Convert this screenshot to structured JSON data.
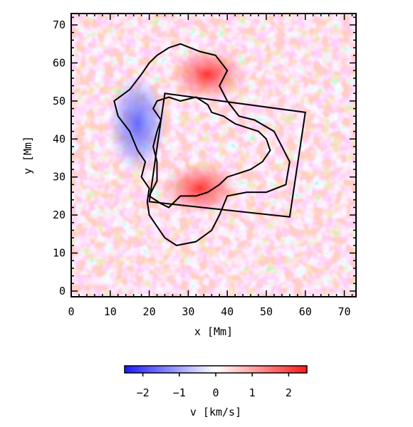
{
  "chart_data": {
    "type": "heatmap",
    "xlabel": "x [Mm]",
    "ylabel": "y [Mm]",
    "xlim": [
      0,
      73
    ],
    "ylim": [
      -1.5,
      73
    ],
    "x_ticks": [
      "0",
      "10",
      "20",
      "30",
      "40",
      "50",
      "60",
      "70"
    ],
    "y_ticks": [
      "0",
      "10",
      "20",
      "30",
      "40",
      "50",
      "60",
      "70"
    ],
    "colorbar": {
      "label": "v [km/s]",
      "range": [
        -2.5,
        2.5
      ],
      "ticks": [
        "−2",
        "−1",
        "0",
        "1",
        "2"
      ],
      "colors": [
        "#1a1aff",
        "#ffffff",
        "#ff1a1a"
      ]
    },
    "features": {
      "penumbra_outline": [
        [
          19.5,
          23.5
        ],
        [
          20,
          27
        ],
        [
          18,
          30
        ],
        [
          19,
          34
        ],
        [
          17,
          37
        ],
        [
          15,
          42
        ],
        [
          12,
          46
        ],
        [
          11,
          50
        ],
        [
          15,
          53
        ],
        [
          18,
          57
        ],
        [
          20,
          60
        ],
        [
          22,
          62
        ],
        [
          25,
          64
        ],
        [
          28,
          65
        ],
        [
          33,
          63
        ],
        [
          37,
          62
        ],
        [
          40,
          58
        ],
        [
          38,
          54
        ],
        [
          40,
          50
        ],
        [
          43,
          46
        ],
        [
          47,
          45
        ],
        [
          52,
          42
        ],
        [
          54,
          38
        ],
        [
          56,
          34
        ],
        [
          55,
          28
        ],
        [
          50,
          26
        ],
        [
          45,
          26
        ],
        [
          40,
          25
        ],
        [
          38,
          20
        ],
        [
          36,
          16
        ],
        [
          32,
          13
        ],
        [
          27,
          12
        ],
        [
          24,
          14
        ],
        [
          22,
          17
        ],
        [
          20,
          20
        ],
        [
          19.5,
          23.5
        ]
      ],
      "umbra_outline": [
        [
          20,
          25
        ],
        [
          22,
          29
        ],
        [
          22,
          34
        ],
        [
          21,
          38
        ],
        [
          22,
          42
        ],
        [
          23,
          45
        ],
        [
          21,
          48
        ],
        [
          22,
          50
        ],
        [
          25,
          51
        ],
        [
          28,
          50
        ],
        [
          32,
          51
        ],
        [
          35,
          49
        ],
        [
          36,
          47
        ],
        [
          39,
          46
        ],
        [
          42,
          44
        ],
        [
          45,
          43
        ],
        [
          48,
          42
        ],
        [
          50,
          40
        ],
        [
          51,
          37
        ],
        [
          49,
          34
        ],
        [
          46,
          32
        ],
        [
          43,
          31
        ],
        [
          40,
          30
        ],
        [
          38,
          28
        ],
        [
          35,
          26
        ],
        [
          32,
          25
        ],
        [
          28,
          25
        ],
        [
          25,
          22
        ],
        [
          23,
          23
        ],
        [
          20,
          25
        ]
      ],
      "rectangle": [
        [
          20,
          23.5
        ],
        [
          24,
          52
        ],
        [
          60,
          47
        ],
        [
          56,
          19.5
        ]
      ],
      "blue_region_center": [
        17,
        44
      ],
      "red_region_centers": [
        [
          33,
          27
        ],
        [
          35,
          57
        ]
      ]
    }
  }
}
